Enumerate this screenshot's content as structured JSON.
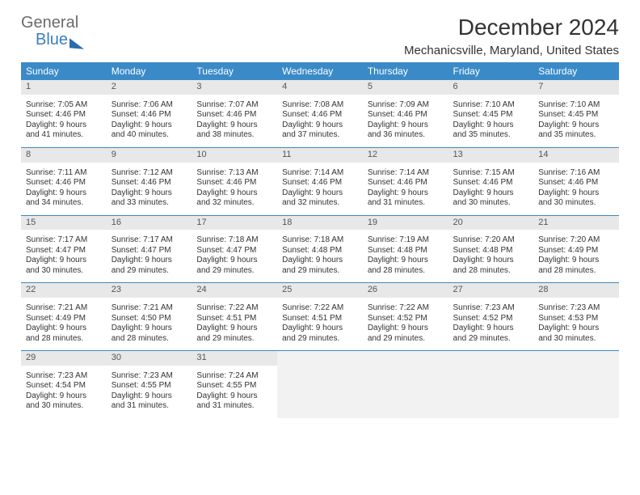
{
  "brand": {
    "line1": "General",
    "line2": "Blue"
  },
  "title": "December 2024",
  "location": "Mechanicsville, Maryland, United States",
  "colors": {
    "header_bg": "#3a8ac8",
    "header_fg": "#ffffff",
    "daynum_bg": "#e8e8e8",
    "cell_border": "#3a8ac8",
    "logo_gray": "#6b6b6b",
    "logo_blue": "#3a7ec0"
  },
  "weekdays": [
    "Sunday",
    "Monday",
    "Tuesday",
    "Wednesday",
    "Thursday",
    "Friday",
    "Saturday"
  ],
  "weeks": [
    [
      {
        "n": "1",
        "sr": "7:05 AM",
        "ss": "4:46 PM",
        "dl": "9 hours and 41 minutes."
      },
      {
        "n": "2",
        "sr": "7:06 AM",
        "ss": "4:46 PM",
        "dl": "9 hours and 40 minutes."
      },
      {
        "n": "3",
        "sr": "7:07 AM",
        "ss": "4:46 PM",
        "dl": "9 hours and 38 minutes."
      },
      {
        "n": "4",
        "sr": "7:08 AM",
        "ss": "4:46 PM",
        "dl": "9 hours and 37 minutes."
      },
      {
        "n": "5",
        "sr": "7:09 AM",
        "ss": "4:46 PM",
        "dl": "9 hours and 36 minutes."
      },
      {
        "n": "6",
        "sr": "7:10 AM",
        "ss": "4:45 PM",
        "dl": "9 hours and 35 minutes."
      },
      {
        "n": "7",
        "sr": "7:10 AM",
        "ss": "4:45 PM",
        "dl": "9 hours and 35 minutes."
      }
    ],
    [
      {
        "n": "8",
        "sr": "7:11 AM",
        "ss": "4:46 PM",
        "dl": "9 hours and 34 minutes."
      },
      {
        "n": "9",
        "sr": "7:12 AM",
        "ss": "4:46 PM",
        "dl": "9 hours and 33 minutes."
      },
      {
        "n": "10",
        "sr": "7:13 AM",
        "ss": "4:46 PM",
        "dl": "9 hours and 32 minutes."
      },
      {
        "n": "11",
        "sr": "7:14 AM",
        "ss": "4:46 PM",
        "dl": "9 hours and 32 minutes."
      },
      {
        "n": "12",
        "sr": "7:14 AM",
        "ss": "4:46 PM",
        "dl": "9 hours and 31 minutes."
      },
      {
        "n": "13",
        "sr": "7:15 AM",
        "ss": "4:46 PM",
        "dl": "9 hours and 30 minutes."
      },
      {
        "n": "14",
        "sr": "7:16 AM",
        "ss": "4:46 PM",
        "dl": "9 hours and 30 minutes."
      }
    ],
    [
      {
        "n": "15",
        "sr": "7:17 AM",
        "ss": "4:47 PM",
        "dl": "9 hours and 30 minutes."
      },
      {
        "n": "16",
        "sr": "7:17 AM",
        "ss": "4:47 PM",
        "dl": "9 hours and 29 minutes."
      },
      {
        "n": "17",
        "sr": "7:18 AM",
        "ss": "4:47 PM",
        "dl": "9 hours and 29 minutes."
      },
      {
        "n": "18",
        "sr": "7:18 AM",
        "ss": "4:48 PM",
        "dl": "9 hours and 29 minutes."
      },
      {
        "n": "19",
        "sr": "7:19 AM",
        "ss": "4:48 PM",
        "dl": "9 hours and 28 minutes."
      },
      {
        "n": "20",
        "sr": "7:20 AM",
        "ss": "4:48 PM",
        "dl": "9 hours and 28 minutes."
      },
      {
        "n": "21",
        "sr": "7:20 AM",
        "ss": "4:49 PM",
        "dl": "9 hours and 28 minutes."
      }
    ],
    [
      {
        "n": "22",
        "sr": "7:21 AM",
        "ss": "4:49 PM",
        "dl": "9 hours and 28 minutes."
      },
      {
        "n": "23",
        "sr": "7:21 AM",
        "ss": "4:50 PM",
        "dl": "9 hours and 28 minutes."
      },
      {
        "n": "24",
        "sr": "7:22 AM",
        "ss": "4:51 PM",
        "dl": "9 hours and 29 minutes."
      },
      {
        "n": "25",
        "sr": "7:22 AM",
        "ss": "4:51 PM",
        "dl": "9 hours and 29 minutes."
      },
      {
        "n": "26",
        "sr": "7:22 AM",
        "ss": "4:52 PM",
        "dl": "9 hours and 29 minutes."
      },
      {
        "n": "27",
        "sr": "7:23 AM",
        "ss": "4:52 PM",
        "dl": "9 hours and 29 minutes."
      },
      {
        "n": "28",
        "sr": "7:23 AM",
        "ss": "4:53 PM",
        "dl": "9 hours and 30 minutes."
      }
    ],
    [
      {
        "n": "29",
        "sr": "7:23 AM",
        "ss": "4:54 PM",
        "dl": "9 hours and 30 minutes."
      },
      {
        "n": "30",
        "sr": "7:23 AM",
        "ss": "4:55 PM",
        "dl": "9 hours and 31 minutes."
      },
      {
        "n": "31",
        "sr": "7:24 AM",
        "ss": "4:55 PM",
        "dl": "9 hours and 31 minutes."
      },
      null,
      null,
      null,
      null
    ]
  ],
  "labels": {
    "sunrise": "Sunrise:",
    "sunset": "Sunset:",
    "daylight": "Daylight:"
  }
}
